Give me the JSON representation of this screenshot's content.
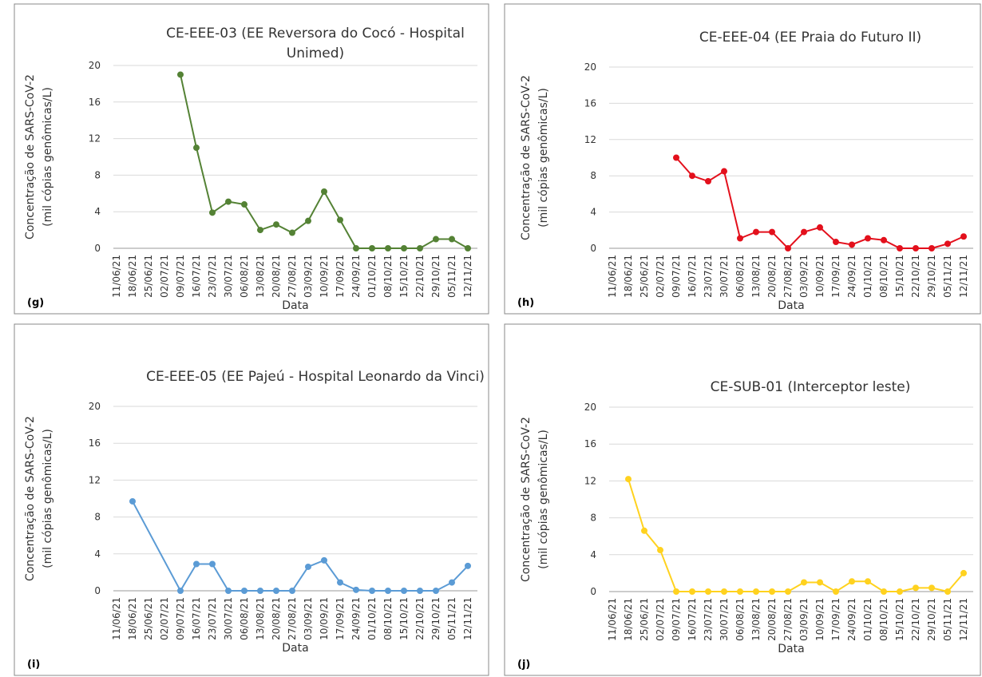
{
  "chart_data": [
    {
      "type": "line",
      "title": "CE-EEE-03 (EE Reversora do Cocó - Hospital Unimed)",
      "panel_label": "(g)",
      "x_label": "Data",
      "y_label": [
        "Concentração de SARS-CoV-2",
        "(mil cópias genômicas/L)"
      ],
      "categories": [
        "11/06/21",
        "18/06/21",
        "25/06/21",
        "02/07/21",
        "09/07/21",
        "16/07/21",
        "23/07/21",
        "30/07/21",
        "06/08/21",
        "13/08/21",
        "20/08/21",
        "27/08/21",
        "03/09/21",
        "10/09/21",
        "17/09/21",
        "24/09/21",
        "01/10/21",
        "08/10/21",
        "15/10/21",
        "22/10/21",
        "29/10/21",
        "05/11/21",
        "12/11/21"
      ],
      "series": [
        {
          "color": "#548235",
          "x": [
            "09/07/21",
            "16/07/21",
            "23/07/21",
            "30/07/21",
            "06/08/21",
            "13/08/21",
            "20/08/21",
            "27/08/21",
            "03/09/21",
            "10/09/21",
            "17/09/21",
            "24/09/21",
            "01/10/21",
            "08/10/21",
            "15/10/21",
            "22/10/21",
            "29/10/21",
            "05/11/21",
            "12/11/21"
          ],
          "values": [
            19,
            11,
            3.9,
            5.1,
            4.8,
            2.0,
            2.6,
            1.7,
            3.0,
            6.2,
            3.1,
            0,
            0,
            0,
            0,
            0,
            1.0,
            1.0,
            0
          ]
        }
      ],
      "ylim": [
        0,
        20
      ],
      "yticks": [
        0,
        4,
        8,
        12,
        16,
        20
      ],
      "grid": true
    },
    {
      "type": "line",
      "title": "CE-EEE-04 (EE Praia do Futuro II)",
      "panel_label": "(h)",
      "x_label": "Data",
      "y_label": [
        "Concentração de SARS-CoV-2",
        "(mil cópias genômicas/L)"
      ],
      "categories": [
        "11/06/21",
        "18/06/21",
        "25/06/21",
        "02/07/21",
        "09/07/21",
        "16/07/21",
        "23/07/21",
        "30/07/21",
        "06/08/21",
        "13/08/21",
        "20/08/21",
        "27/08/21",
        "03/09/21",
        "10/09/21",
        "17/09/21",
        "24/09/21",
        "01/10/21",
        "08/10/21",
        "15/10/21",
        "22/10/21",
        "29/10/21",
        "05/11/21",
        "12/11/21"
      ],
      "series": [
        {
          "color": "#e3101c",
          "x": [
            "09/07/21",
            "16/07/21",
            "23/07/21",
            "30/07/21",
            "06/08/21",
            "13/08/21",
            "20/08/21",
            "27/08/21",
            "03/09/21",
            "10/09/21",
            "17/09/21",
            "24/09/21",
            "01/10/21",
            "08/10/21",
            "15/10/21",
            "22/10/21",
            "29/10/21",
            "05/11/21",
            "12/11/21"
          ],
          "values": [
            10,
            8,
            7.4,
            8.5,
            1.1,
            1.8,
            1.8,
            0,
            1.8,
            2.3,
            0.7,
            0.4,
            1.1,
            0.9,
            0,
            0,
            0,
            0.5,
            1.3
          ]
        }
      ],
      "ylim": [
        0,
        20
      ],
      "yticks": [
        0,
        4,
        8,
        12,
        16,
        20
      ],
      "grid": true
    },
    {
      "type": "line",
      "title": "CE-EEE-05 (EE Pajeú - Hospital Leonardo da Vinci)",
      "panel_label": "(i)",
      "x_label": "Data",
      "y_label": [
        "Concentração de SARS-CoV-2",
        "(mil cópias genômicas/L)"
      ],
      "categories": [
        "11/06/21",
        "18/06/21",
        "25/06/21",
        "02/07/21",
        "09/07/21",
        "16/07/21",
        "23/07/21",
        "30/07/21",
        "06/08/21",
        "13/08/21",
        "20/08/21",
        "27/08/21",
        "03/09/21",
        "10/09/21",
        "17/09/21",
        "24/09/21",
        "01/10/21",
        "08/10/21",
        "15/10/21",
        "22/10/21",
        "29/10/21",
        "05/11/21",
        "12/11/21"
      ],
      "series": [
        {
          "color": "#5b9bd5",
          "x": [
            "18/06/21",
            "09/07/21",
            "16/07/21",
            "23/07/21",
            "30/07/21",
            "06/08/21",
            "13/08/21",
            "20/08/21",
            "27/08/21",
            "03/09/21",
            "10/09/21",
            "17/09/21",
            "24/09/21",
            "01/10/21",
            "08/10/21",
            "15/10/21",
            "22/10/21",
            "29/10/21",
            "05/11/21",
            "12/11/21"
          ],
          "values": [
            9.7,
            0,
            2.9,
            2.9,
            0,
            0,
            0,
            0,
            0,
            2.6,
            3.3,
            0.9,
            0.1,
            0,
            0,
            0,
            0,
            0,
            0.9,
            2.7
          ]
        }
      ],
      "ylim": [
        0,
        20
      ],
      "yticks": [
        0,
        4,
        8,
        12,
        16,
        20
      ],
      "grid": true
    },
    {
      "type": "line",
      "title": "CE-SUB-01 (Interceptor leste)",
      "panel_label": "(j)",
      "x_label": "Data",
      "y_label": [
        "Concentração de SARS-CoV-2",
        "(mil cópias genômicas/L)"
      ],
      "categories": [
        "11/06/21",
        "18/06/21",
        "25/06/21",
        "02/07/21",
        "09/07/21",
        "16/07/21",
        "23/07/21",
        "30/07/21",
        "06/08/21",
        "13/08/21",
        "20/08/21",
        "27/08/21",
        "03/09/21",
        "10/09/21",
        "17/09/21",
        "24/09/21",
        "01/10/21",
        "08/10/21",
        "15/10/21",
        "22/10/21",
        "29/10/21",
        "05/11/21",
        "12/11/21"
      ],
      "series": [
        {
          "color": "#ffd21f",
          "x": [
            "18/06/21",
            "25/06/21",
            "02/07/21",
            "09/07/21",
            "16/07/21",
            "23/07/21",
            "30/07/21",
            "06/08/21",
            "13/08/21",
            "20/08/21",
            "27/08/21",
            "03/09/21",
            "10/09/21",
            "17/09/21",
            "24/09/21",
            "01/10/21",
            "08/10/21",
            "15/10/21",
            "22/10/21",
            "29/10/21",
            "05/11/21",
            "12/11/21"
          ],
          "values": [
            12.2,
            6.6,
            4.5,
            0,
            0,
            0,
            0,
            0,
            0,
            0,
            0,
            1.0,
            1.0,
            0,
            1.1,
            1.1,
            0,
            0,
            0.4,
            0.4,
            0,
            2.0
          ]
        }
      ],
      "ylim": [
        0,
        20
      ],
      "yticks": [
        0,
        4,
        8,
        12,
        16,
        20
      ],
      "grid": true
    }
  ]
}
